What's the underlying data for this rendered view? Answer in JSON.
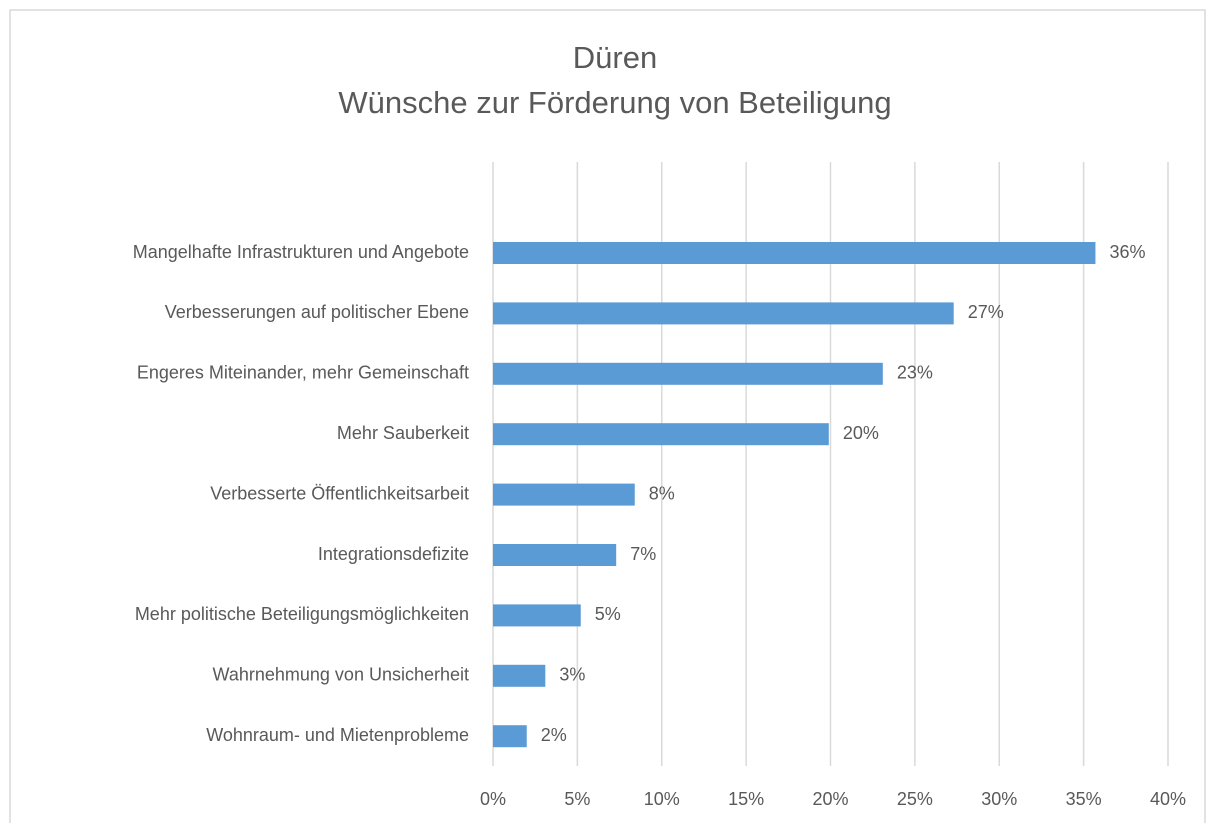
{
  "chart_data": {
    "type": "hbar",
    "title": "Düren",
    "subtitle": "Wünsche zur Förderung von Beteiligung",
    "categories": [
      "Mangelhafte Infrastrukturen und Angebote",
      "Verbesserungen auf politischer Ebene",
      "Engeres Miteinander, mehr Gemeinschaft",
      "Mehr Sauberkeit",
      "Verbesserte Öffentlichkeitsarbeit",
      "Integrationsdefizite",
      "Mehr politische Beteiligungsmöglichkeiten",
      "Wahrnehmung von Unsicherheit",
      "Wohnraum- und Mietenprobleme"
    ],
    "values": [
      35.7,
      27.3,
      23.1,
      19.9,
      8.4,
      7.3,
      5.2,
      3.1,
      2.0
    ],
    "value_labels": [
      "36%",
      "27%",
      "23%",
      "20%",
      "8%",
      "7%",
      "5%",
      "3%",
      "2%"
    ],
    "color": "#5b9bd5",
    "xlim": [
      0,
      40
    ],
    "xticks": [
      {
        "value": 0,
        "label": "0%"
      },
      {
        "value": 5,
        "label": "5%"
      },
      {
        "value": 10,
        "label": "10%"
      },
      {
        "value": 15,
        "label": "15%"
      },
      {
        "value": 20,
        "label": "20%"
      },
      {
        "value": 25,
        "label": "25%"
      },
      {
        "value": 30,
        "label": "30%"
      },
      {
        "value": 35,
        "label": "35%"
      },
      {
        "value": 40,
        "label": "40%"
      }
    ],
    "grid": true
  }
}
